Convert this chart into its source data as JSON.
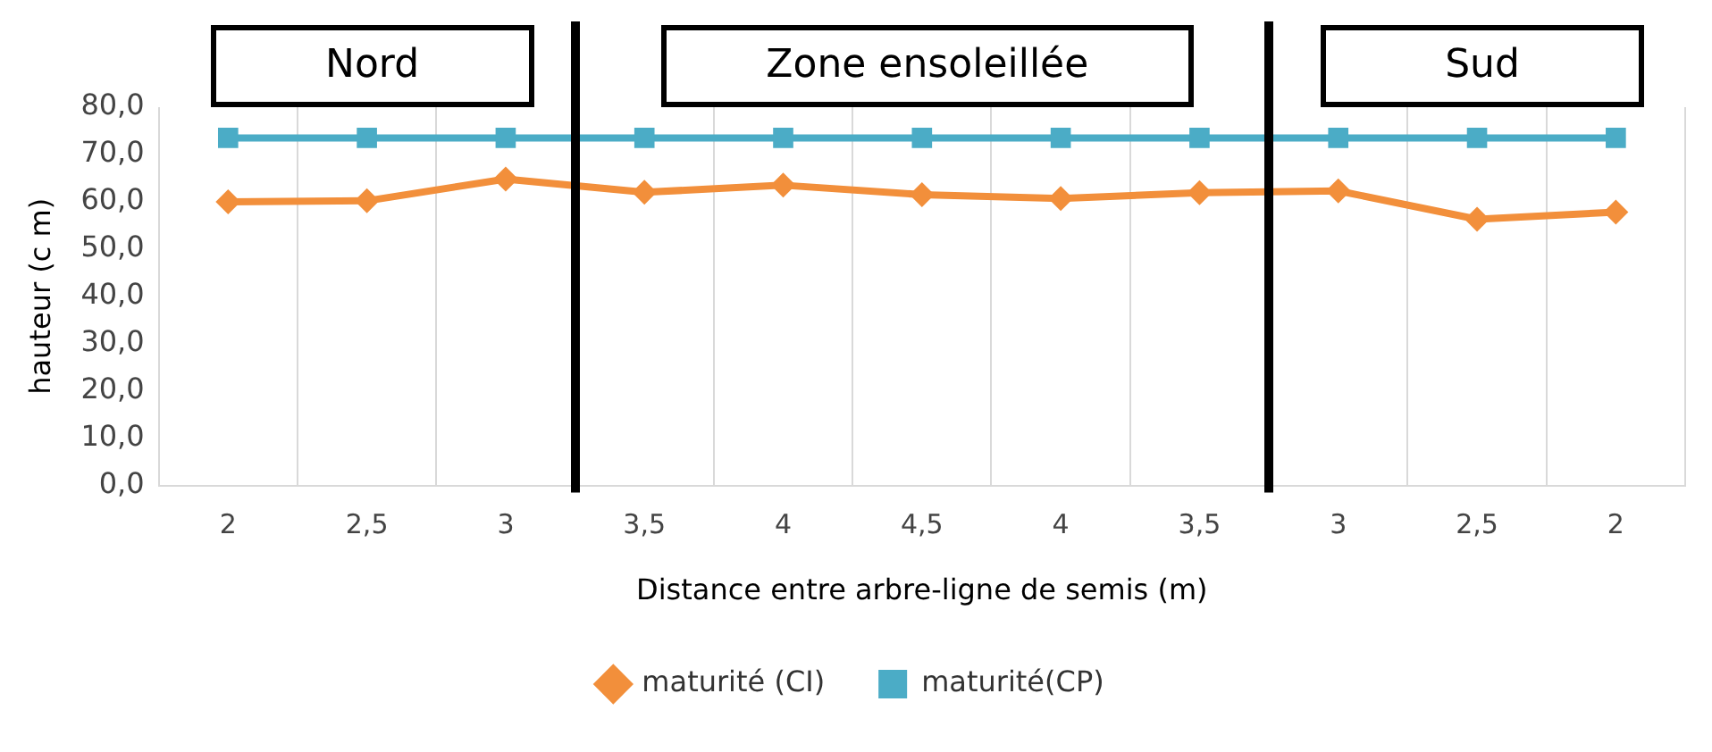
{
  "chart_data": {
    "type": "line",
    "xlabel": "Distance entre arbre-ligne de semis (m)",
    "ylabel": "hauteur (c m)",
    "categories": [
      "2",
      "2,5",
      "3",
      "3,5",
      "4",
      "4,5",
      "4",
      "3,5",
      "3",
      "2,5",
      "2"
    ],
    "series": [
      {
        "name": "maturité (CI)",
        "color": "#f28f3b",
        "marker": "diamond",
        "values": [
          60,
          60.2,
          64.8,
          62,
          63.5,
          61.5,
          60.7,
          61.9,
          62.3,
          56.3,
          57.8
        ]
      },
      {
        "name": "maturité(CP)",
        "color": "#4bacc6",
        "marker": "square",
        "values": [
          73.5,
          73.5,
          73.5,
          73.5,
          73.5,
          73.5,
          73.5,
          73.5,
          73.5,
          73.5,
          73.5
        ]
      }
    ],
    "ylim": [
      0,
      80
    ],
    "yticks": [
      {
        "value": 0,
        "label": "0,0"
      },
      {
        "value": 10,
        "label": "10,0"
      },
      {
        "value": 20,
        "label": "20,0"
      },
      {
        "value": 30,
        "label": "30,0"
      },
      {
        "value": 40,
        "label": "40,0"
      },
      {
        "value": 50,
        "label": "50,0"
      },
      {
        "value": 60,
        "label": "60,0"
      },
      {
        "value": 70,
        "label": "70,0"
      },
      {
        "value": 80,
        "label": "80,0"
      }
    ],
    "grid": "x",
    "legend": "bottom",
    "annotations": [
      "Nord",
      "Zone ensoleillée",
      "Sud"
    ]
  }
}
